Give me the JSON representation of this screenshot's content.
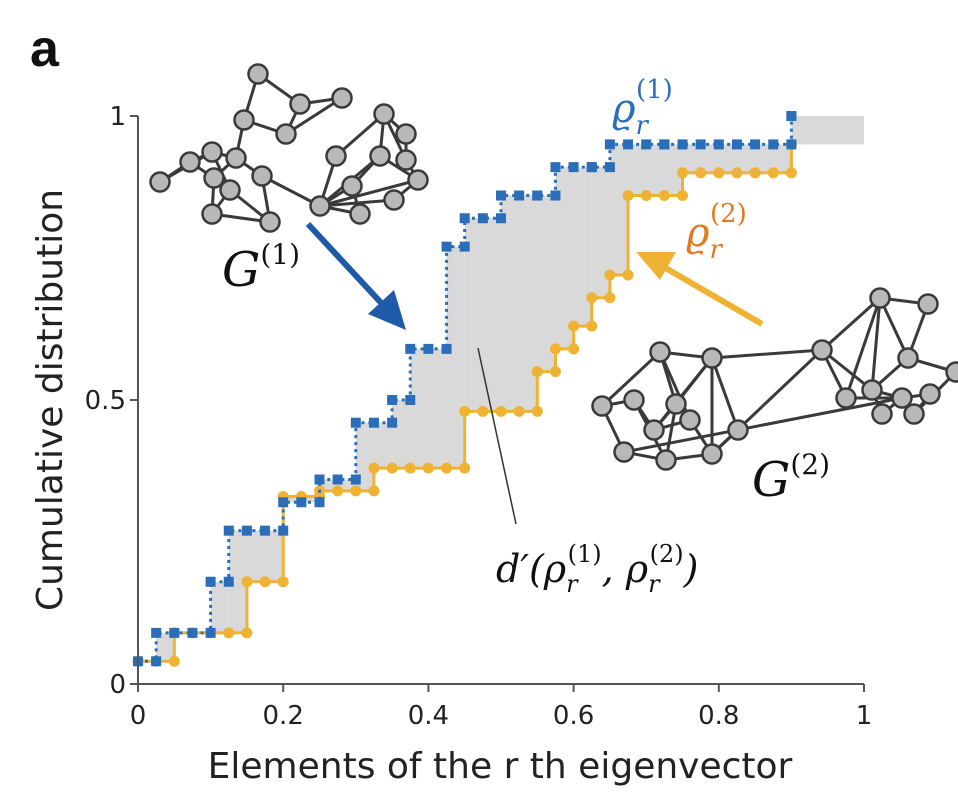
{
  "panel_label": "a",
  "colors": {
    "blue": "#2a6db8",
    "orange": "#f0b232",
    "shade": "#d9d9d9",
    "axis": "#555555",
    "node_fill": "#b8b8b8",
    "node_edge": "#3a3a3a",
    "arrow_blue": "#1e5aa8"
  },
  "annotations": {
    "rho1_base": "ϱ",
    "rho1_sub": "r",
    "rho1_sup": "(1)",
    "rho2_base": "ϱ",
    "rho2_sub": "r",
    "rho2_sup": "(2)",
    "g1_base": "G",
    "g1_sup": "(1)",
    "g2_base": "G",
    "g2_sup": "(2)",
    "dist_label": "d′(ρ",
    "dist_sub1": "r",
    "dist_sup1": "(1)",
    "dist_mid": ", ρ",
    "dist_sub2": "r",
    "dist_sup2": "(2)",
    "dist_end": ")"
  },
  "icons": [
    "network-graph-g1-icon",
    "network-graph-g2-icon"
  ],
  "chart_data": {
    "type": "line",
    "step": true,
    "xlabel": "Elements of the r th eigenvector",
    "ylabel": "Cumulative distribution",
    "xlim": [
      0,
      1
    ],
    "ylim": [
      0,
      1
    ],
    "xticks": [
      "0",
      "0.2",
      "0.4",
      "0.6",
      "0.8",
      "1"
    ],
    "xtick_values": [
      0,
      0.2,
      0.4,
      0.6,
      0.8,
      1
    ],
    "yticks": [
      "0",
      "0.5",
      "1"
    ],
    "ytick_values": [
      0,
      0.5,
      1
    ],
    "grid": false,
    "series": [
      {
        "color": "#2a6db8",
        "style": "dotted-squares",
        "x": [
          0,
          0.025,
          0.1,
          0.125,
          0.2,
          0.25,
          0.3,
          0.35,
          0.375,
          0.425,
          0.45,
          0.5,
          0.55,
          0.575,
          0.625,
          0.65,
          0.725,
          0.9
        ],
        "y": [
          0.04,
          0.09,
          0.18,
          0.27,
          0.32,
          0.36,
          0.46,
          0.5,
          0.59,
          0.77,
          0.82,
          0.86,
          0.86,
          0.91,
          0.91,
          0.95,
          0.95,
          1.0
        ]
      },
      {
        "color": "#f0b232",
        "style": "solid-dots",
        "x": [
          0,
          0.05,
          0.15,
          0.2,
          0.25,
          0.325,
          0.45,
          0.55,
          0.575,
          0.6,
          0.625,
          0.65,
          0.675,
          0.75,
          0.9
        ],
        "y": [
          0.04,
          0.09,
          0.18,
          0.33,
          0.34,
          0.38,
          0.48,
          0.55,
          0.59,
          0.63,
          0.68,
          0.72,
          0.86,
          0.9,
          0.95
        ]
      }
    ]
  }
}
